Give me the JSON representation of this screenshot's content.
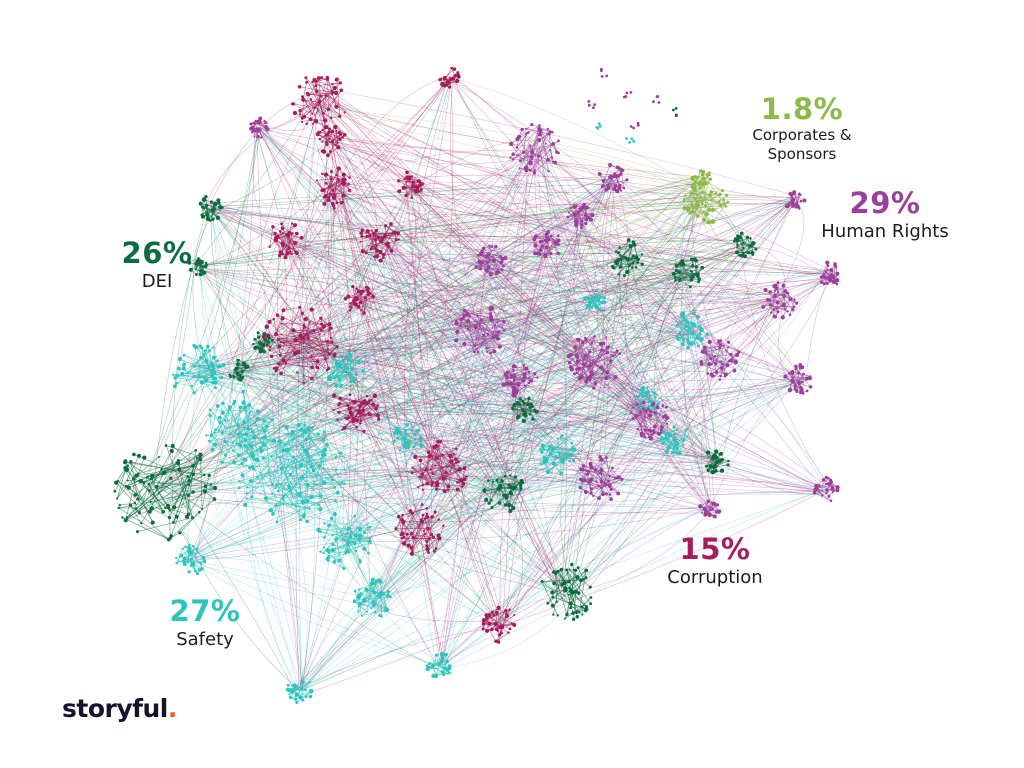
{
  "clusters": [
    {
      "key": "dei",
      "percent": "26%",
      "name": "DEI",
      "color": "#0d6b3f"
    },
    {
      "key": "safety",
      "percent": "27%",
      "name": "Safety",
      "color": "#2ec4bd"
    },
    {
      "key": "corruption",
      "percent": "15%",
      "name": "Corruption",
      "color": "#a51d5c"
    },
    {
      "key": "human_rights",
      "percent": "29%",
      "name": "Human Rights",
      "color": "#9b3f9a"
    },
    {
      "key": "corporates",
      "percent": "1.8%",
      "name_lines": [
        "Corporates &",
        "Sponsors"
      ],
      "color": "#8db84a"
    }
  ],
  "logo": {
    "text": "storyful",
    "dot": ".",
    "dot_color": "#f25a1d"
  }
}
